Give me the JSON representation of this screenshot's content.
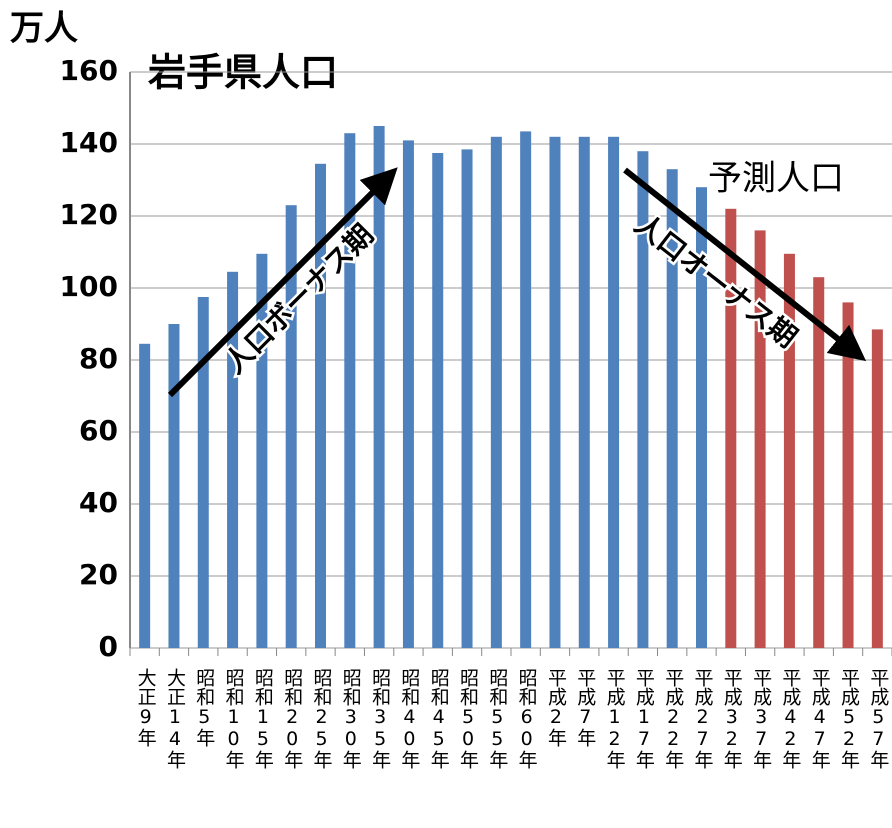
{
  "chart_data": {
    "type": "bar",
    "title": "岩手県人口",
    "y_label": "万人",
    "annotations": [
      "人口ボーナス期",
      "人口オーナス期",
      "予測人口"
    ],
    "categories": [
      "大正9年",
      "大正14年",
      "昭和5年",
      "昭和10年",
      "昭和15年",
      "昭和20年",
      "昭和25年",
      "昭和30年",
      "昭和35年",
      "昭和40年",
      "昭和45年",
      "昭和50年",
      "昭和55年",
      "昭和60年",
      "平成2年",
      "平成7年",
      "平成12年",
      "平成17年",
      "平成22年",
      "平成27年",
      "平成32年",
      "平成37年",
      "平成42年",
      "平成47年",
      "平成52年",
      "平成57年"
    ],
    "series": [
      {
        "color": "#4f81bd",
        "values": [
          84.5,
          90,
          97.5,
          104.5,
          109.5,
          123,
          134.5,
          143,
          145,
          141,
          137.5,
          138.5,
          142,
          143.5,
          142,
          142,
          142,
          138,
          133,
          128,
          null,
          null,
          null,
          null,
          null,
          null
        ]
      },
      {
        "color": "#c0504d",
        "values": [
          null,
          null,
          null,
          null,
          null,
          null,
          null,
          null,
          null,
          null,
          null,
          null,
          null,
          null,
          null,
          null,
          null,
          null,
          null,
          null,
          122,
          116,
          109.5,
          103,
          96,
          88.5
        ]
      }
    ],
    "ylim": [
      0,
      160
    ],
    "yticks": [
      0,
      20,
      40,
      60,
      80,
      100,
      120,
      140,
      160
    ],
    "grid": true
  }
}
